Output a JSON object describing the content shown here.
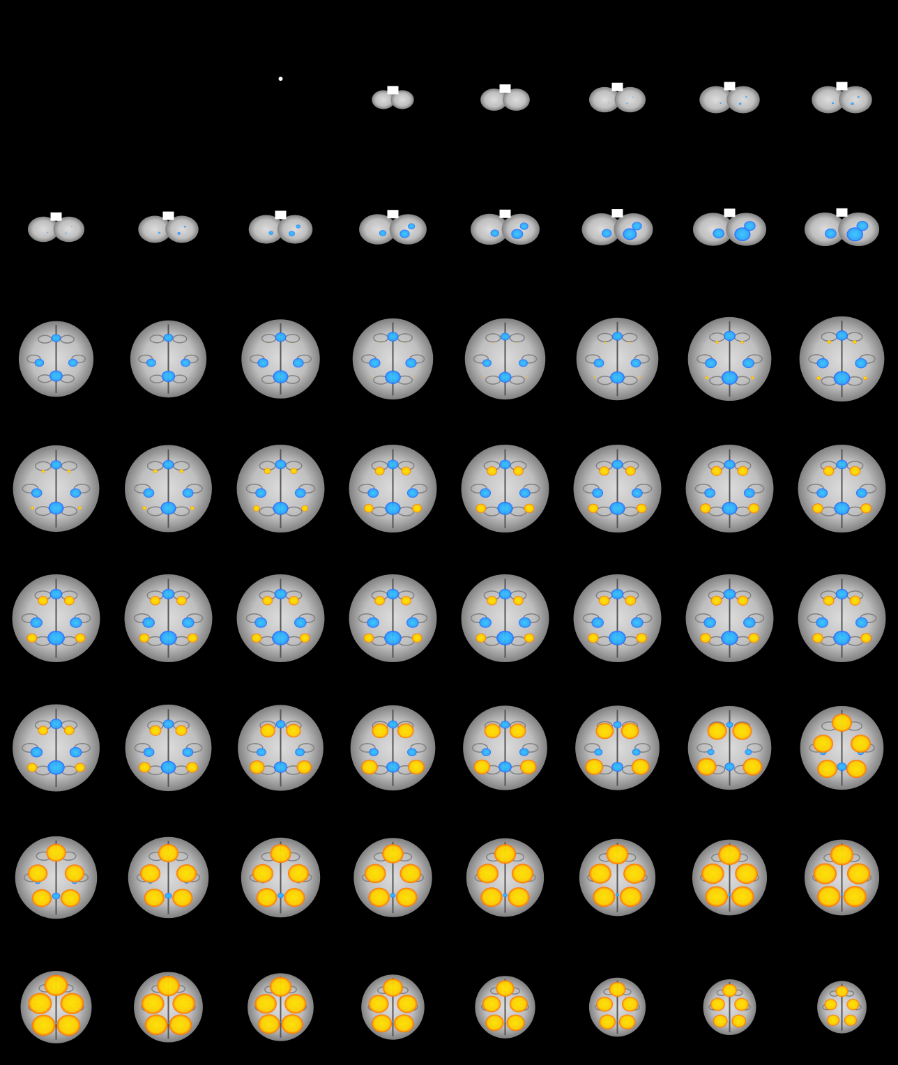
{
  "figure": {
    "description_visible_text": "",
    "background_color": "#000000",
    "layout": {
      "columns": 8,
      "rows": 8,
      "orientation": "axial"
    },
    "colors": {
      "anatomy_light": "#f2f2f2",
      "anatomy_mid": "#a8a8a8",
      "anatomy_dark": "#5a5a5a",
      "positive_high": "#ffe400",
      "positive_low": "#ff6a00",
      "negative_high": "#33c8ff",
      "negative_low": "#1f5fff"
    },
    "slices": [
      {
        "row": 0,
        "col": 0,
        "extent": 0.0,
        "pos": 0.0,
        "neg": 0.0
      },
      {
        "row": 0,
        "col": 1,
        "extent": 0.0,
        "pos": 0.0,
        "neg": 0.0
      },
      {
        "row": 0,
        "col": 2,
        "extent": 0.05,
        "pos": 0.0,
        "neg": 0.0
      },
      {
        "row": 0,
        "col": 3,
        "extent": 0.35,
        "pos": 0.0,
        "neg": 0.0
      },
      {
        "row": 0,
        "col": 4,
        "extent": 0.45,
        "pos": 0.0,
        "neg": 0.0
      },
      {
        "row": 0,
        "col": 5,
        "extent": 0.55,
        "pos": 0.0,
        "neg": 0.05
      },
      {
        "row": 0,
        "col": 6,
        "extent": 0.6,
        "pos": 0.0,
        "neg": 0.08
      },
      {
        "row": 0,
        "col": 7,
        "extent": 0.6,
        "pos": 0.0,
        "neg": 0.1
      },
      {
        "row": 1,
        "col": 0,
        "extent": 0.55,
        "pos": 0.0,
        "neg": 0.05
      },
      {
        "row": 1,
        "col": 1,
        "extent": 0.6,
        "pos": 0.0,
        "neg": 0.1
      },
      {
        "row": 1,
        "col": 2,
        "extent": 0.65,
        "pos": 0.0,
        "neg": 0.2
      },
      {
        "row": 1,
        "col": 3,
        "extent": 0.7,
        "pos": 0.02,
        "neg": 0.3
      },
      {
        "row": 1,
        "col": 4,
        "extent": 0.72,
        "pos": 0.02,
        "neg": 0.35
      },
      {
        "row": 1,
        "col": 5,
        "extent": 0.75,
        "pos": 0.02,
        "neg": 0.4
      },
      {
        "row": 1,
        "col": 6,
        "extent": 0.78,
        "pos": 0.02,
        "neg": 0.45
      },
      {
        "row": 1,
        "col": 7,
        "extent": 0.8,
        "pos": 0.02,
        "neg": 0.45
      },
      {
        "row": 2,
        "col": 0,
        "extent": 0.8,
        "pos": 0.02,
        "neg": 0.45
      },
      {
        "row": 2,
        "col": 1,
        "extent": 0.82,
        "pos": 0.02,
        "neg": 0.45
      },
      {
        "row": 2,
        "col": 2,
        "extent": 0.85,
        "pos": 0.03,
        "neg": 0.5
      },
      {
        "row": 2,
        "col": 3,
        "extent": 0.88,
        "pos": 0.03,
        "neg": 0.5
      },
      {
        "row": 2,
        "col": 4,
        "extent": 0.88,
        "pos": 0.04,
        "neg": 0.4
      },
      {
        "row": 2,
        "col": 5,
        "extent": 0.9,
        "pos": 0.06,
        "neg": 0.45
      },
      {
        "row": 2,
        "col": 6,
        "extent": 0.92,
        "pos": 0.1,
        "neg": 0.5
      },
      {
        "row": 2,
        "col": 7,
        "extent": 0.94,
        "pos": 0.12,
        "neg": 0.5
      },
      {
        "row": 3,
        "col": 0,
        "extent": 0.96,
        "pos": 0.1,
        "neg": 0.45
      },
      {
        "row": 3,
        "col": 1,
        "extent": 0.97,
        "pos": 0.12,
        "neg": 0.45
      },
      {
        "row": 3,
        "col": 2,
        "extent": 0.98,
        "pos": 0.2,
        "neg": 0.45
      },
      {
        "row": 3,
        "col": 3,
        "extent": 0.98,
        "pos": 0.28,
        "neg": 0.45
      },
      {
        "row": 3,
        "col": 4,
        "extent": 0.98,
        "pos": 0.3,
        "neg": 0.45
      },
      {
        "row": 3,
        "col": 5,
        "extent": 0.98,
        "pos": 0.3,
        "neg": 0.45
      },
      {
        "row": 3,
        "col": 6,
        "extent": 0.98,
        "pos": 0.32,
        "neg": 0.45
      },
      {
        "row": 3,
        "col": 7,
        "extent": 0.98,
        "pos": 0.32,
        "neg": 0.45
      },
      {
        "row": 4,
        "col": 0,
        "extent": 0.98,
        "pos": 0.3,
        "neg": 0.5
      },
      {
        "row": 4,
        "col": 1,
        "extent": 0.98,
        "pos": 0.3,
        "neg": 0.5
      },
      {
        "row": 4,
        "col": 2,
        "extent": 0.98,
        "pos": 0.3,
        "neg": 0.5
      },
      {
        "row": 4,
        "col": 3,
        "extent": 0.98,
        "pos": 0.3,
        "neg": 0.5
      },
      {
        "row": 4,
        "col": 4,
        "extent": 0.98,
        "pos": 0.3,
        "neg": 0.5
      },
      {
        "row": 4,
        "col": 5,
        "extent": 0.98,
        "pos": 0.32,
        "neg": 0.5
      },
      {
        "row": 4,
        "col": 6,
        "extent": 0.98,
        "pos": 0.32,
        "neg": 0.5
      },
      {
        "row": 4,
        "col": 7,
        "extent": 0.98,
        "pos": 0.32,
        "neg": 0.5
      },
      {
        "row": 5,
        "col": 0,
        "extent": 0.97,
        "pos": 0.3,
        "neg": 0.5
      },
      {
        "row": 5,
        "col": 1,
        "extent": 0.96,
        "pos": 0.35,
        "neg": 0.45
      },
      {
        "row": 5,
        "col": 2,
        "extent": 0.95,
        "pos": 0.45,
        "neg": 0.4
      },
      {
        "row": 5,
        "col": 3,
        "extent": 0.94,
        "pos": 0.5,
        "neg": 0.4
      },
      {
        "row": 5,
        "col": 4,
        "extent": 0.93,
        "pos": 0.5,
        "neg": 0.4
      },
      {
        "row": 5,
        "col": 5,
        "extent": 0.93,
        "pos": 0.55,
        "neg": 0.35
      },
      {
        "row": 5,
        "col": 6,
        "extent": 0.92,
        "pos": 0.6,
        "neg": 0.3
      },
      {
        "row": 5,
        "col": 7,
        "extent": 0.92,
        "pos": 0.62,
        "neg": 0.3
      },
      {
        "row": 6,
        "col": 0,
        "extent": 0.9,
        "pos": 0.62,
        "neg": 0.25
      },
      {
        "row": 6,
        "col": 1,
        "extent": 0.88,
        "pos": 0.65,
        "neg": 0.22
      },
      {
        "row": 6,
        "col": 2,
        "extent": 0.86,
        "pos": 0.68,
        "neg": 0.2
      },
      {
        "row": 6,
        "col": 3,
        "extent": 0.85,
        "pos": 0.7,
        "neg": 0.18
      },
      {
        "row": 6,
        "col": 4,
        "extent": 0.84,
        "pos": 0.72,
        "neg": 0.15
      },
      {
        "row": 6,
        "col": 5,
        "extent": 0.82,
        "pos": 0.75,
        "neg": 0.12
      },
      {
        "row": 6,
        "col": 6,
        "extent": 0.8,
        "pos": 0.78,
        "neg": 0.1
      },
      {
        "row": 6,
        "col": 7,
        "extent": 0.8,
        "pos": 0.8,
        "neg": 0.08
      },
      {
        "row": 7,
        "col": 0,
        "extent": 0.75,
        "pos": 0.85,
        "neg": 0.08
      },
      {
        "row": 7,
        "col": 1,
        "extent": 0.72,
        "pos": 0.85,
        "neg": 0.06
      },
      {
        "row": 7,
        "col": 2,
        "extent": 0.68,
        "pos": 0.85,
        "neg": 0.06
      },
      {
        "row": 7,
        "col": 3,
        "extent": 0.64,
        "pos": 0.82,
        "neg": 0.06
      },
      {
        "row": 7,
        "col": 4,
        "extent": 0.6,
        "pos": 0.78,
        "neg": 0.05
      },
      {
        "row": 7,
        "col": 5,
        "extent": 0.55,
        "pos": 0.75,
        "neg": 0.05
      },
      {
        "row": 7,
        "col": 6,
        "extent": 0.5,
        "pos": 0.7,
        "neg": 0.05
      },
      {
        "row": 7,
        "col": 7,
        "extent": 0.45,
        "pos": 0.65,
        "neg": 0.05
      }
    ]
  }
}
